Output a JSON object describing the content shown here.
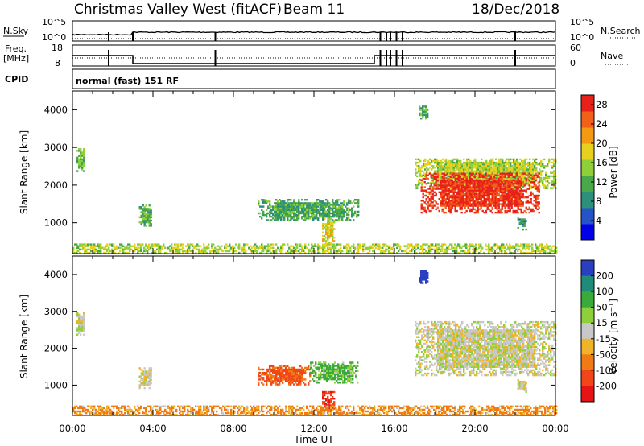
{
  "header": {
    "station": "Christmas Valley West (fitACF)",
    "beam": "Beam 11",
    "date": "18/Dec/2018"
  },
  "noise_strip": {
    "left_label": "N.Sky",
    "right_label": "N.Search",
    "left_ticks": [
      "10^5",
      "10^0"
    ],
    "right_ticks": [
      "10^5",
      "10^0"
    ]
  },
  "freq_strip": {
    "left_label_line1": "Freq.",
    "left_label_line2": "[MHz]",
    "right_label": "Nave",
    "left_ticks": [
      "18",
      "8"
    ],
    "right_ticks": [
      "60",
      "0"
    ],
    "freq_levels_mhz": [
      {
        "from_hour": 0.0,
        "to_hour": 3.0,
        "value": 14.5
      },
      {
        "from_hour": 3.0,
        "to_hour": 15.0,
        "value": 9.5
      },
      {
        "from_hour": 15.0,
        "to_hour": 24.0,
        "value": 14.5
      }
    ]
  },
  "cpid": {
    "label": "CPID",
    "text": "normal (fast) 151 RF"
  },
  "chart_data": [
    {
      "type": "heatmap",
      "name": "power",
      "xlabel": "",
      "ylabel": "Slant Range [km]",
      "xlim_hours": [
        0,
        24
      ],
      "ylim": [
        180,
        4500
      ],
      "yticks": [
        1000,
        2000,
        3000,
        4000
      ],
      "colorbar_label": "Power [dB]",
      "colorbar_ticks": [
        4,
        8,
        12,
        16,
        20,
        24,
        28
      ],
      "colorbar_range": [
        0,
        30
      ],
      "colors": [
        "#0000e6",
        "#2454c8",
        "#2e8f7a",
        "#4aa84a",
        "#8fcf3a",
        "#e6d21e",
        "#f39a12",
        "#f2601a",
        "#e8221a"
      ],
      "regions": [
        {
          "t0": 0.2,
          "t1": 0.6,
          "r0": 2350,
          "r1": 2950,
          "value": 13
        },
        {
          "t0": 3.3,
          "t1": 3.9,
          "r0": 900,
          "r1": 1450,
          "value": 12
        },
        {
          "t0": 9.2,
          "t1": 14.2,
          "r0": 1050,
          "r1": 1600,
          "value": 11
        },
        {
          "t0": 12.4,
          "t1": 13.0,
          "r0": 450,
          "r1": 1100,
          "value": 18
        },
        {
          "t0": 17.2,
          "t1": 17.6,
          "r0": 3750,
          "r1": 4100,
          "value": 12
        },
        {
          "t0": 17.0,
          "t1": 24.0,
          "r0": 1900,
          "r1": 2700,
          "value": 16
        },
        {
          "t0": 17.3,
          "t1": 23.2,
          "r0": 1250,
          "r1": 2300,
          "value": 28
        },
        {
          "t0": 22.1,
          "t1": 22.5,
          "r0": 800,
          "r1": 1150,
          "value": 10
        },
        {
          "t0": 0.0,
          "t1": 24.0,
          "r0": 180,
          "r1": 420,
          "value": 16
        }
      ]
    },
    {
      "type": "heatmap",
      "name": "velocity",
      "xlabel": "Time UT",
      "ylabel": "Slant Range [km]",
      "xlim_hours": [
        0,
        24
      ],
      "ylim": [
        180,
        4500
      ],
      "xticks": [
        "00:00",
        "04:00",
        "08:00",
        "12:00",
        "16:00",
        "20:00",
        "00:00"
      ],
      "yticks": [
        1000,
        2000,
        3000,
        4000
      ],
      "colorbar_label": "Velocity [m s^-1]",
      "colorbar_ticks": [
        200,
        100,
        50,
        15,
        -15,
        -50,
        -100,
        -200
      ],
      "colors": [
        "#2a3fbf",
        "#1e8c78",
        "#3aaa3a",
        "#8fd03a",
        "#c8c8c8",
        "#f0b42a",
        "#f07a14",
        "#f0461a",
        "#e61414"
      ],
      "regions": [
        {
          "t0": 0.2,
          "t1": 0.6,
          "r0": 2350,
          "r1": 2950,
          "value": 0
        },
        {
          "t0": 3.3,
          "t1": 3.9,
          "r0": 900,
          "r1": 1450,
          "value": 0
        },
        {
          "t0": 9.2,
          "t1": 11.8,
          "r0": 1000,
          "r1": 1500,
          "value": -80
        },
        {
          "t0": 11.8,
          "t1": 14.2,
          "r0": 1050,
          "r1": 1600,
          "value": 40
        },
        {
          "t0": 12.4,
          "t1": 13.0,
          "r0": 300,
          "r1": 800,
          "value": -150
        },
        {
          "t0": 17.2,
          "t1": 17.6,
          "r0": 3750,
          "r1": 4100,
          "value": 180
        },
        {
          "t0": 17.0,
          "t1": 24.0,
          "r0": 1250,
          "r1": 2700,
          "value": 0
        },
        {
          "t0": 22.1,
          "t1": 22.5,
          "r0": 800,
          "r1": 1150,
          "value": 0
        },
        {
          "t0": 0.0,
          "t1": 24.0,
          "r0": 180,
          "r1": 420,
          "value": -40
        }
      ]
    }
  ]
}
